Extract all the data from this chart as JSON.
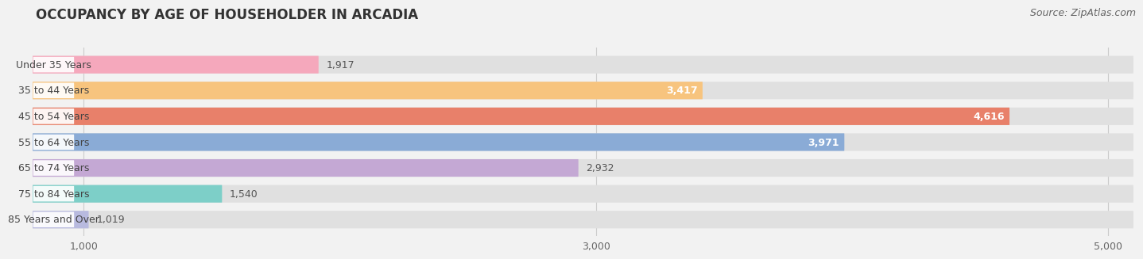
{
  "title": "OCCUPANCY BY AGE OF HOUSEHOLDER IN ARCADIA",
  "source": "Source: ZipAtlas.com",
  "categories": [
    "Under 35 Years",
    "35 to 44 Years",
    "45 to 54 Years",
    "55 to 64 Years",
    "65 to 74 Years",
    "75 to 84 Years",
    "85 Years and Over"
  ],
  "values": [
    1917,
    3417,
    4616,
    3971,
    2932,
    1540,
    1019
  ],
  "bar_colors": [
    "#f5a8bc",
    "#f7c47e",
    "#e8806a",
    "#8aabd6",
    "#c4a8d4",
    "#7dcfc8",
    "#b8badf"
  ],
  "value_inside": [
    false,
    true,
    true,
    true,
    false,
    false,
    false
  ],
  "xlim_min": 800,
  "xlim_max": 5100,
  "xticks": [
    1000,
    3000,
    5000
  ],
  "xticklabels": [
    "1,000",
    "3,000",
    "5,000"
  ],
  "background_color": "#f2f2f2",
  "bar_bg_color": "#e0e0e0",
  "title_fontsize": 12,
  "source_fontsize": 9,
  "label_fontsize": 9,
  "value_fontsize": 9,
  "tick_fontsize": 9,
  "bar_height": 0.68,
  "bar_gap": 1.0
}
